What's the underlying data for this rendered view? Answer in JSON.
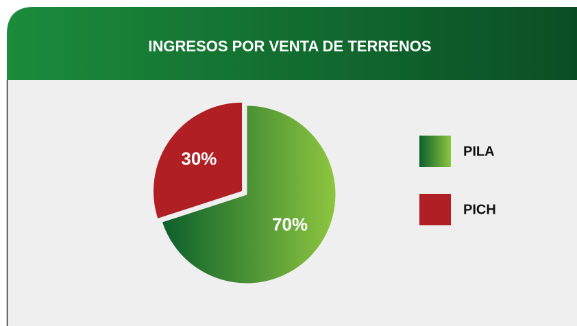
{
  "chart_data": {
    "type": "pie",
    "title": "INGRESOS POR VENTA DE TERRENOS",
    "categories": [
      "PILA",
      "PICH"
    ],
    "values": [
      70,
      30
    ],
    "value_labels": [
      "70%",
      "30%"
    ],
    "colors": [
      [
        "#0b5f2c",
        "#8dc63f"
      ],
      [
        "#b01f24",
        "#b01f24"
      ]
    ],
    "legend": "right"
  }
}
